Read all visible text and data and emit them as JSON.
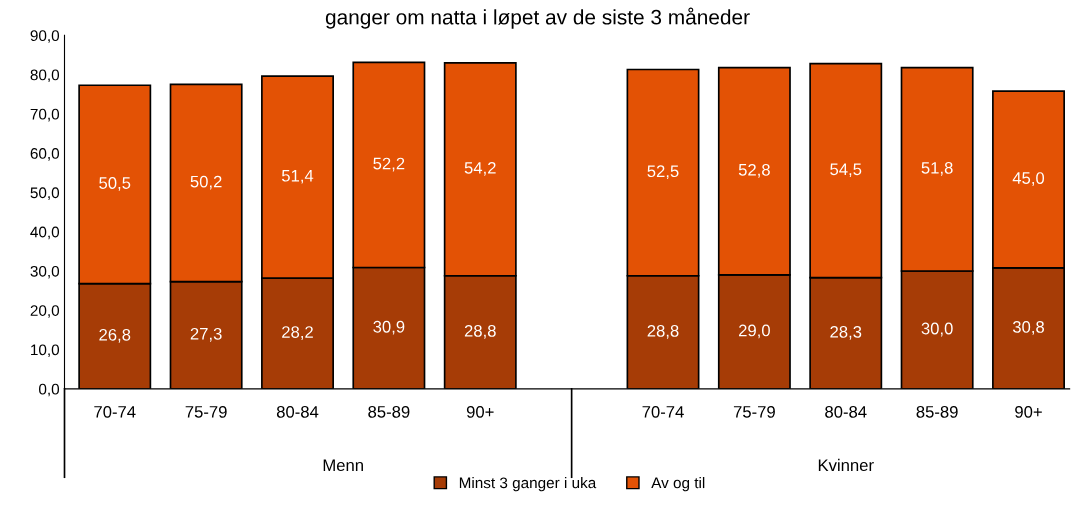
{
  "chart_data": {
    "type": "bar",
    "title": "ganger om natta i løpet av de siste 3 måneder",
    "categories": [
      "70-74",
      "75-79",
      "80-84",
      "85-89",
      "90+",
      null,
      "70-74",
      "75-79",
      "80-84",
      "85-89",
      "90+"
    ],
    "stacked": true,
    "series": [
      {
        "name": "Minst 3 ganger i uka",
        "color": "#a63c06",
        "values": [
          26.8,
          27.3,
          28.2,
          30.9,
          28.8,
          null,
          28.8,
          29.0,
          28.3,
          30.0,
          30.8
        ],
        "value_labels": [
          "26,8",
          "27,3",
          "28,2",
          "30,9",
          "28,8",
          null,
          "28,8",
          "29,0",
          "28,3",
          "30,0",
          "30,8"
        ]
      },
      {
        "name": "Av og til",
        "color": "#e35205",
        "values": [
          50.5,
          50.2,
          51.4,
          52.2,
          54.2,
          null,
          52.5,
          52.8,
          54.5,
          51.8,
          45.0
        ],
        "value_labels": [
          "50,5",
          "50,2",
          "51,4",
          "52,2",
          "54,2",
          null,
          "52,5",
          "52,8",
          "54,5",
          "51,8",
          "45,0"
        ]
      }
    ],
    "ylim": [
      0,
      90
    ],
    "yticks": [
      {
        "value": 0,
        "label": "0,0"
      },
      {
        "value": 10,
        "label": "10,0"
      },
      {
        "value": 20,
        "label": "20,0"
      },
      {
        "value": 30,
        "label": "30,0"
      },
      {
        "value": 40,
        "label": "40,0"
      },
      {
        "value": 50,
        "label": "50,0"
      },
      {
        "value": 60,
        "label": "60,0"
      },
      {
        "value": 70,
        "label": "70,0"
      },
      {
        "value": 80,
        "label": "80,0"
      },
      {
        "value": 90,
        "label": "90,0"
      }
    ],
    "annotations": [
      "Menn",
      "Kvinner"
    ],
    "grid": false,
    "legend": "bottom"
  }
}
